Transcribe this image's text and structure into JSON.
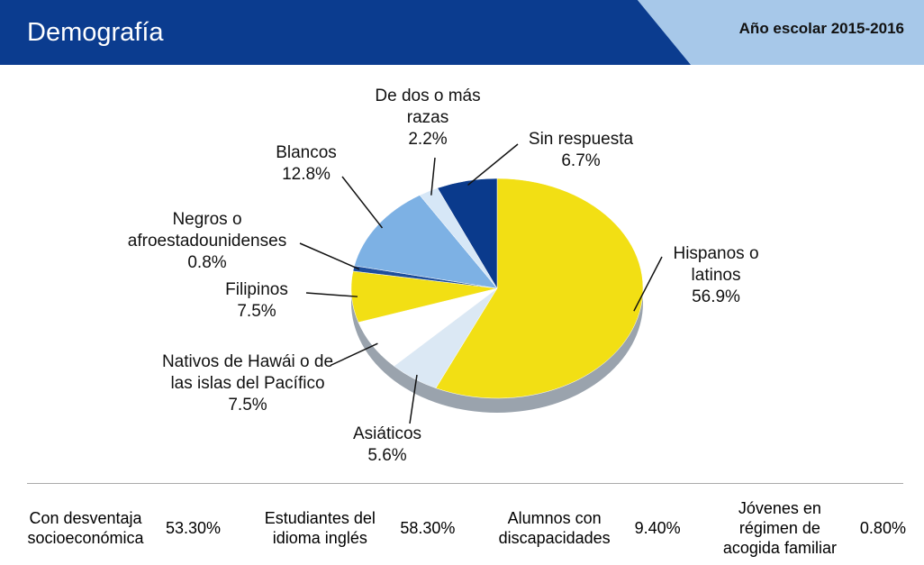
{
  "header": {
    "title": "Demografía",
    "subtitle": "Año escolar 2015-2016"
  },
  "chart_data": {
    "type": "pie",
    "categories": [
      "Hispanos o latinos",
      "Asiáticos",
      "Nativos de Hawái o de las islas del Pacífico",
      "Filipinos",
      "Negros o afroestadounidenses",
      "Blancos",
      "De dos o más razas",
      "Sin respuesta"
    ],
    "values": [
      56.9,
      5.6,
      7.5,
      7.5,
      0.8,
      12.8,
      2.2,
      6.7
    ],
    "value_labels": [
      "56.9%",
      "5.6%",
      "7.5%",
      "7.5%",
      "0.8%",
      "12.8%",
      "2.2%",
      "6.7%"
    ],
    "colors": [
      "#f2df14",
      "#dbe8f4",
      "#ffffff",
      "#f2df14",
      "#1f4f9c",
      "#7db1e4",
      "#d6e7f7",
      "#0a3a8c"
    ]
  },
  "stats": [
    {
      "label": "Con desventaja socioeconómica",
      "value": "53.30%"
    },
    {
      "label": "Estudiantes del idioma inglés",
      "value": "58.30%"
    },
    {
      "label": "Alumnos con discapacidades",
      "value": "9.40%"
    },
    {
      "label": "Jóvenes en régimen de acogida familiar",
      "value": "0.80%"
    }
  ]
}
